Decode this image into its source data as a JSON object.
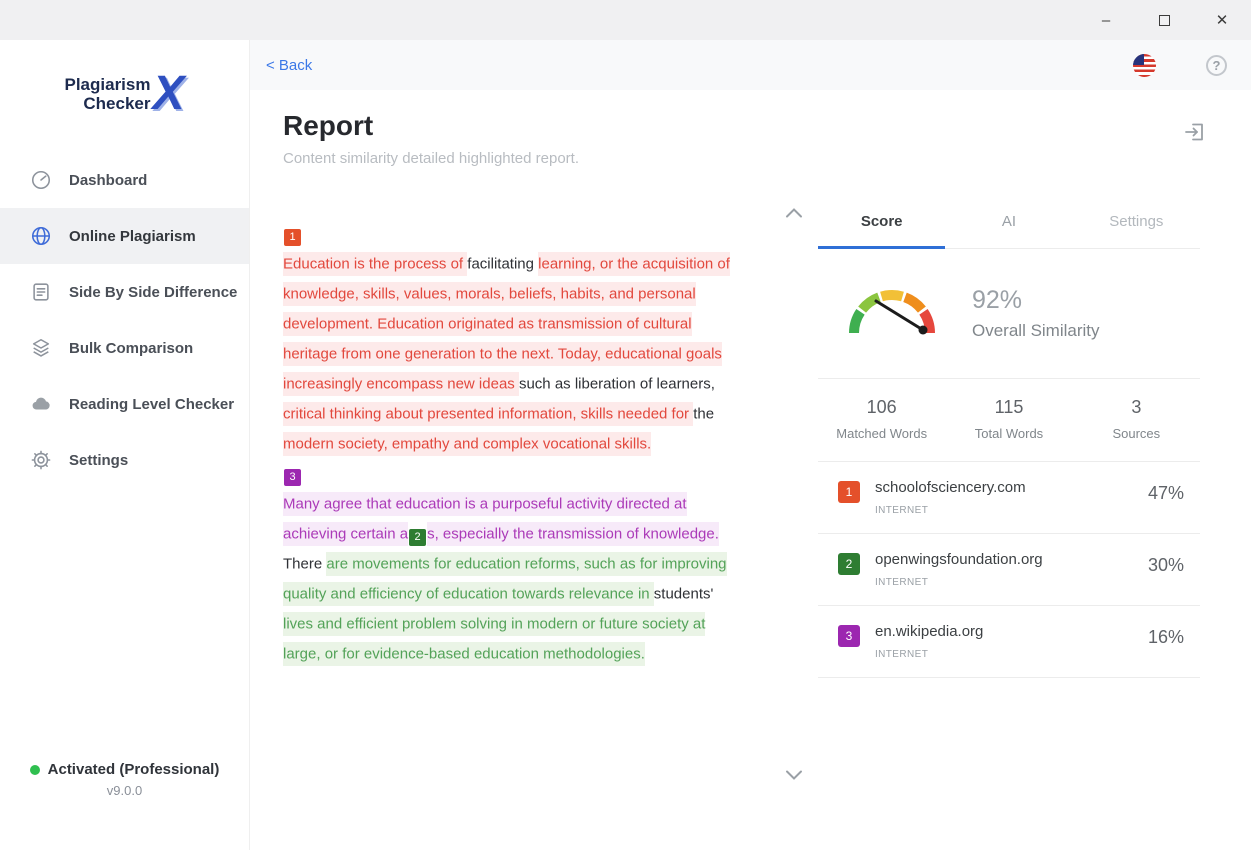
{
  "window_controls": {
    "minimize": "–",
    "close": "✕"
  },
  "sidebar": {
    "logo": {
      "line1": "Plagiarism",
      "line2": "Checker",
      "x": "X"
    },
    "items": [
      {
        "label": "Dashboard",
        "active": false
      },
      {
        "label": "Online Plagiarism",
        "active": true
      },
      {
        "label": "Side By Side Difference",
        "active": false
      },
      {
        "label": "Bulk Comparison",
        "active": false
      },
      {
        "label": "Reading Level Checker",
        "active": false
      },
      {
        "label": "Settings",
        "active": false
      }
    ],
    "activation": {
      "status": "Activated (Professional)",
      "version": "v9.0.0"
    }
  },
  "header": {
    "back": "< Back",
    "help": "?"
  },
  "report": {
    "title": "Report",
    "subtitle": "Content similarity detailed highlighted report."
  },
  "document": {
    "badge_colors": {
      "1": "#e4502a",
      "2": "#2e7d32",
      "3": "#9c27b0"
    },
    "segments": [
      {
        "badge": "1"
      },
      {
        "br": true
      },
      {
        "t": "Education is the process of ",
        "s": "red"
      },
      {
        "t": "facilitating ",
        "s": "plain"
      },
      {
        "t": "learning, or the acquisition of knowledge, skills, values, morals, beliefs, habits, and personal development. Education originated as transmission of cultural heritage from one generation to the next. Today, educational goals increasingly encompass new ideas ",
        "s": "red"
      },
      {
        "t": "such as liberation of learners, ",
        "s": "plain"
      },
      {
        "t": "critical thinking about presented information, skills needed for ",
        "s": "red"
      },
      {
        "t": "the ",
        "s": "plain"
      },
      {
        "t": "modern society, empathy and complex vocational skills.",
        "s": "red"
      },
      {
        "br": true
      },
      {
        "badge": "3"
      },
      {
        "br": true
      },
      {
        "t": "Many agree that education is a purposeful activity directed at achieving certain a",
        "s": "purple"
      },
      {
        "badge": "2"
      },
      {
        "t": "s, especially the transmission of knowledge.",
        "s": "purple"
      },
      {
        "t": " There ",
        "s": "plain"
      },
      {
        "t": "are movements for education reforms, such as for improving quality and efficiency of education towards relevance in ",
        "s": "green"
      },
      {
        "t": "students' ",
        "s": "plain"
      },
      {
        "t": "lives and efficient problem solving in modern or future society at large, or for evidence-based education methodologies.",
        "s": "green"
      }
    ]
  },
  "panel": {
    "tabs": [
      {
        "label": "Score",
        "active": true
      },
      {
        "label": "AI",
        "active": false
      },
      {
        "label": "Settings",
        "active": false
      }
    ],
    "score": {
      "percent": "92%",
      "label": "Overall Similarity"
    },
    "stats": [
      {
        "value": "106",
        "label": "Matched Words"
      },
      {
        "value": "115",
        "label": "Total Words"
      },
      {
        "value": "3",
        "label": "Sources"
      }
    ],
    "sources": [
      {
        "num": "1",
        "domain": "schoolofsciencery.com",
        "type": "INTERNET",
        "percent": "47%",
        "color": "#e4502a"
      },
      {
        "num": "2",
        "domain": "openwingsfoundation.org",
        "type": "INTERNET",
        "percent": "30%",
        "color": "#2e7d32"
      },
      {
        "num": "3",
        "domain": "en.wikipedia.org",
        "type": "INTERNET",
        "percent": "16%",
        "color": "#9c27b0"
      }
    ]
  },
  "colors": {
    "accent_blue": "#3b78e7",
    "tab_underline": "#2f6fd6",
    "red_text": "#e2483d",
    "red_bg": "#fdeaea",
    "purple_text": "#ab3ab8",
    "purple_bg": "#f7eaf9",
    "green_text": "#53a258",
    "green_bg": "#eaf4e6",
    "activation_dot": "#2fbf4f"
  }
}
